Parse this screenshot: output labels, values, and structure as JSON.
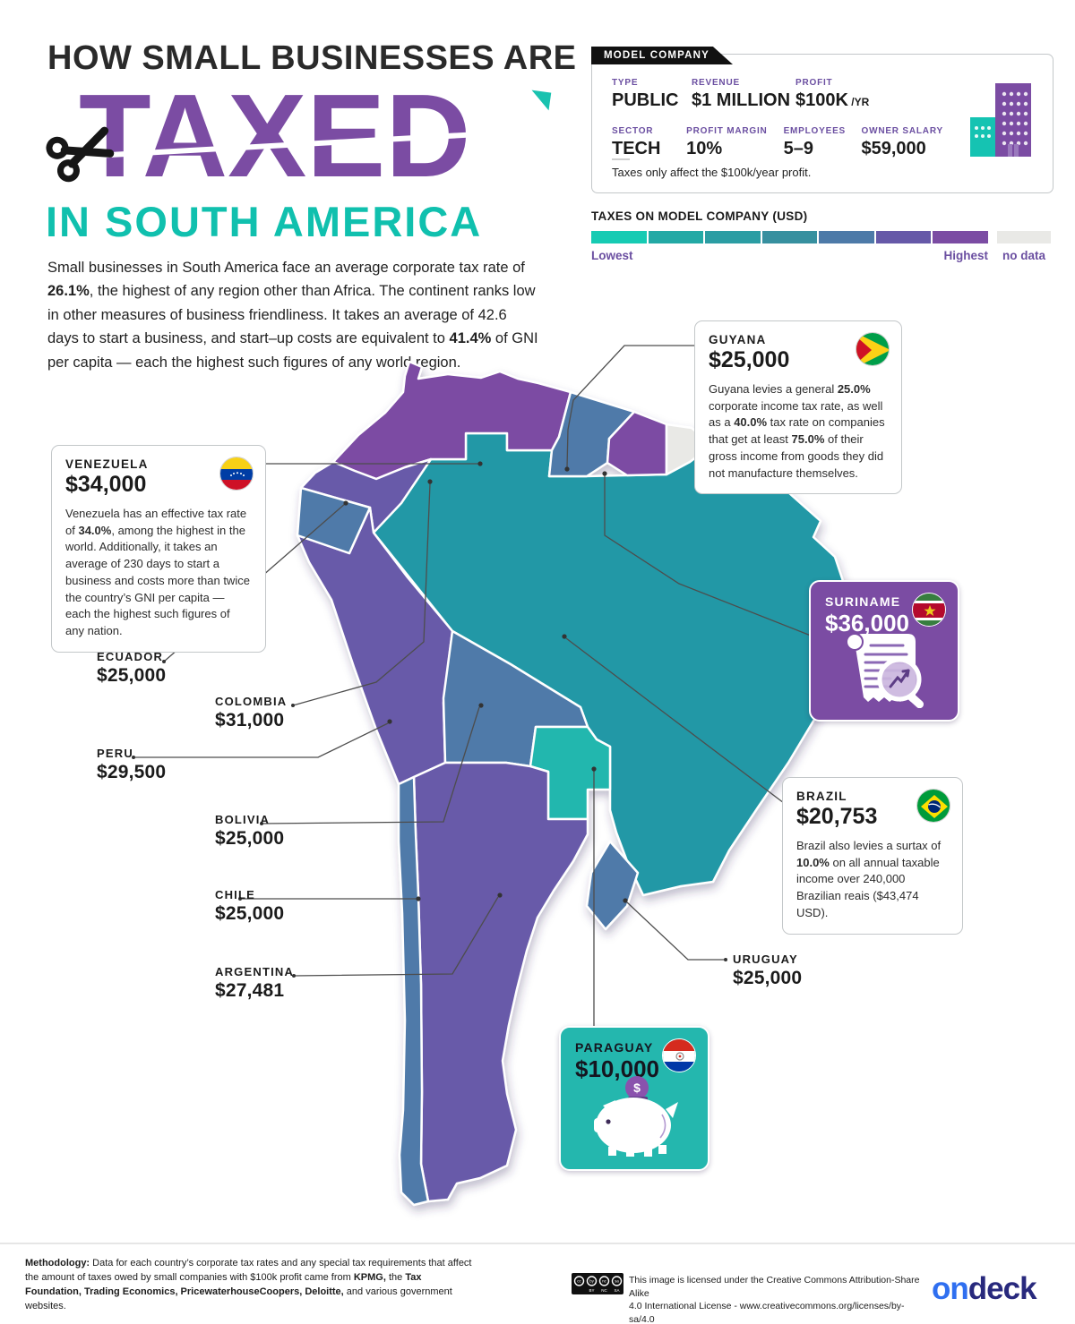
{
  "title": {
    "line1": "HOW SMALL BUSINESSES ARE",
    "line2": "TAXED",
    "line3": "IN SOUTH AMERICA"
  },
  "intro": [
    {
      "t": "Small businesses in South America face an average corporate tax rate of "
    },
    {
      "t": "26.1%",
      "b": 1
    },
    {
      "t": ", the highest of any region other than Africa. The continent ranks low in other measures of business friendliness. It takes an average of 42.6 days to start a business, and start–up costs are equivalent to "
    },
    {
      "t": "41.4%",
      "b": 1
    },
    {
      "t": " of GNI per capita — each the highest such figures of any world region."
    }
  ],
  "model_company": {
    "tab": "MODEL COMPANY",
    "fields": [
      {
        "label": "TYPE",
        "value": "PUBLIC"
      },
      {
        "label": "REVENUE",
        "value": "$1 MILLION"
      },
      {
        "label": "PROFIT",
        "value": "$100K",
        "suffix": " /YR"
      },
      {
        "label": "SECTOR",
        "value": "TECH"
      },
      {
        "label": "PROFIT MARGIN",
        "value": "10%"
      },
      {
        "label": "EMPLOYEES",
        "value": "5–9"
      },
      {
        "label": "OWNER SALARY",
        "value": "$59,000"
      }
    ],
    "note": "Taxes only affect the $100k/year profit."
  },
  "legend": {
    "title": "TAXES ON MODEL COMPANY (USD)",
    "lowest": "Lowest",
    "highest": "Highest",
    "no_data": "no data",
    "colors": [
      "#16cbb3",
      "#23a9a5",
      "#2b9da3",
      "#37909f",
      "#4d7aa8",
      "#6659a8",
      "#7b4ca3"
    ],
    "no_data_color": "#e9e9e6"
  },
  "map": {
    "colors": {
      "venezuela": "#7b4ca3",
      "colombia": "#685aa9",
      "ecuador": "#4f7aa9",
      "peru": "#685aa9",
      "guyana": "#4f7aa9",
      "suriname": "#7b4ca3",
      "french_guiana": "#e9e9e6",
      "brazil": "#2398a6",
      "bolivia": "#4f7aa9",
      "paraguay": "#24b7ae",
      "chile": "#4f7aa9",
      "argentina": "#685aa9",
      "uruguay": "#4f7aa9"
    },
    "countries_data": [
      {
        "country": "Venezuela",
        "tax_usd": 34000
      },
      {
        "country": "Guyana",
        "tax_usd": 25000
      },
      {
        "country": "Suriname",
        "tax_usd": 36000
      },
      {
        "country": "French Guiana",
        "tax_usd": "no data"
      },
      {
        "country": "Colombia",
        "tax_usd": 31000
      },
      {
        "country": "Ecuador",
        "tax_usd": 25000
      },
      {
        "country": "Peru",
        "tax_usd": 29500
      },
      {
        "country": "Brazil",
        "tax_usd": 20753
      },
      {
        "country": "Bolivia",
        "tax_usd": 25000
      },
      {
        "country": "Paraguay",
        "tax_usd": 10000
      },
      {
        "country": "Chile",
        "tax_usd": 25000
      },
      {
        "country": "Argentina",
        "tax_usd": 27481
      },
      {
        "country": "Uruguay",
        "tax_usd": 25000
      }
    ]
  },
  "countries": {
    "venezuela": {
      "name": "VENEZUELA",
      "value": "$34,000",
      "desc": [
        {
          "t": "Venezuela has an effective tax rate of "
        },
        {
          "t": "34.0%",
          "b": 1
        },
        {
          "t": ", among the highest in the world. Additionally, it takes an average of 230 days to start a business and costs more than twice the country’s GNI per capita — each the highest such figures of any nation."
        }
      ]
    },
    "guyana": {
      "name": "GUYANA",
      "value": "$25,000",
      "desc": [
        {
          "t": "Guyana levies a general "
        },
        {
          "t": "25.0%",
          "b": 1
        },
        {
          "t": " corporate income tax rate, as well as a "
        },
        {
          "t": "40.0%",
          "b": 1
        },
        {
          "t": " tax rate on companies that get at least "
        },
        {
          "t": "75.0%",
          "b": 1
        },
        {
          "t": " of their gross income from goods they did not manufacture themselves."
        }
      ]
    },
    "suriname": {
      "name": "SURINAME",
      "value": "$36,000"
    },
    "brazil": {
      "name": "BRAZIL",
      "value": "$20,753",
      "desc": [
        {
          "t": "Brazil also levies a surtax of "
        },
        {
          "t": "10.0%",
          "b": 1
        },
        {
          "t": " on all annual taxable income over 240,000 Brazilian reais ($43,474 USD)."
        }
      ]
    },
    "paraguay": {
      "name": "PARAGUAY",
      "value": "$10,000"
    },
    "ecuador": {
      "name": "ECUADOR",
      "value": "$25,000"
    },
    "colombia": {
      "name": "COLOMBIA",
      "value": "$31,000"
    },
    "peru": {
      "name": "PERU",
      "value": "$29,500"
    },
    "bolivia": {
      "name": "BOLIVIA",
      "value": "$25,000"
    },
    "chile": {
      "name": "CHILE",
      "value": "$25,000"
    },
    "argentina": {
      "name": "ARGENTINA",
      "value": "$27,481"
    },
    "uruguay": {
      "name": "URUGUAY",
      "value": "$25,000"
    }
  },
  "icons": {
    "scissors": "scissors-icon",
    "building": "office-buildings-icon",
    "receipt": "receipt-magnifier-icon",
    "piggy": "piggy-bank-icon",
    "cc": "creative-commons-license-icon"
  },
  "footer": {
    "methodology": [
      {
        "t": "Methodology:",
        "b": 1
      },
      {
        "t": "  Data for each country’s corporate tax rates and any special tax requirements that affect the amount of taxes owed by small companies with $100k profit came from "
      },
      {
        "t": "KPMG,",
        "b": 1
      },
      {
        "t": " the "
      },
      {
        "t": "Tax Foundation, Trading Economics, PricewaterhouseCoopers, Deloitte,",
        "b": 1
      },
      {
        "t": " and various government websites."
      }
    ],
    "license_line1": "This image is licensed under the Creative Commons Attribution-Share Alike",
    "license_line2": "4.0  International License - www.creativecommons.org/licenses/by-sa/4.0",
    "brand_on": "on",
    "brand_deck": "deck"
  }
}
